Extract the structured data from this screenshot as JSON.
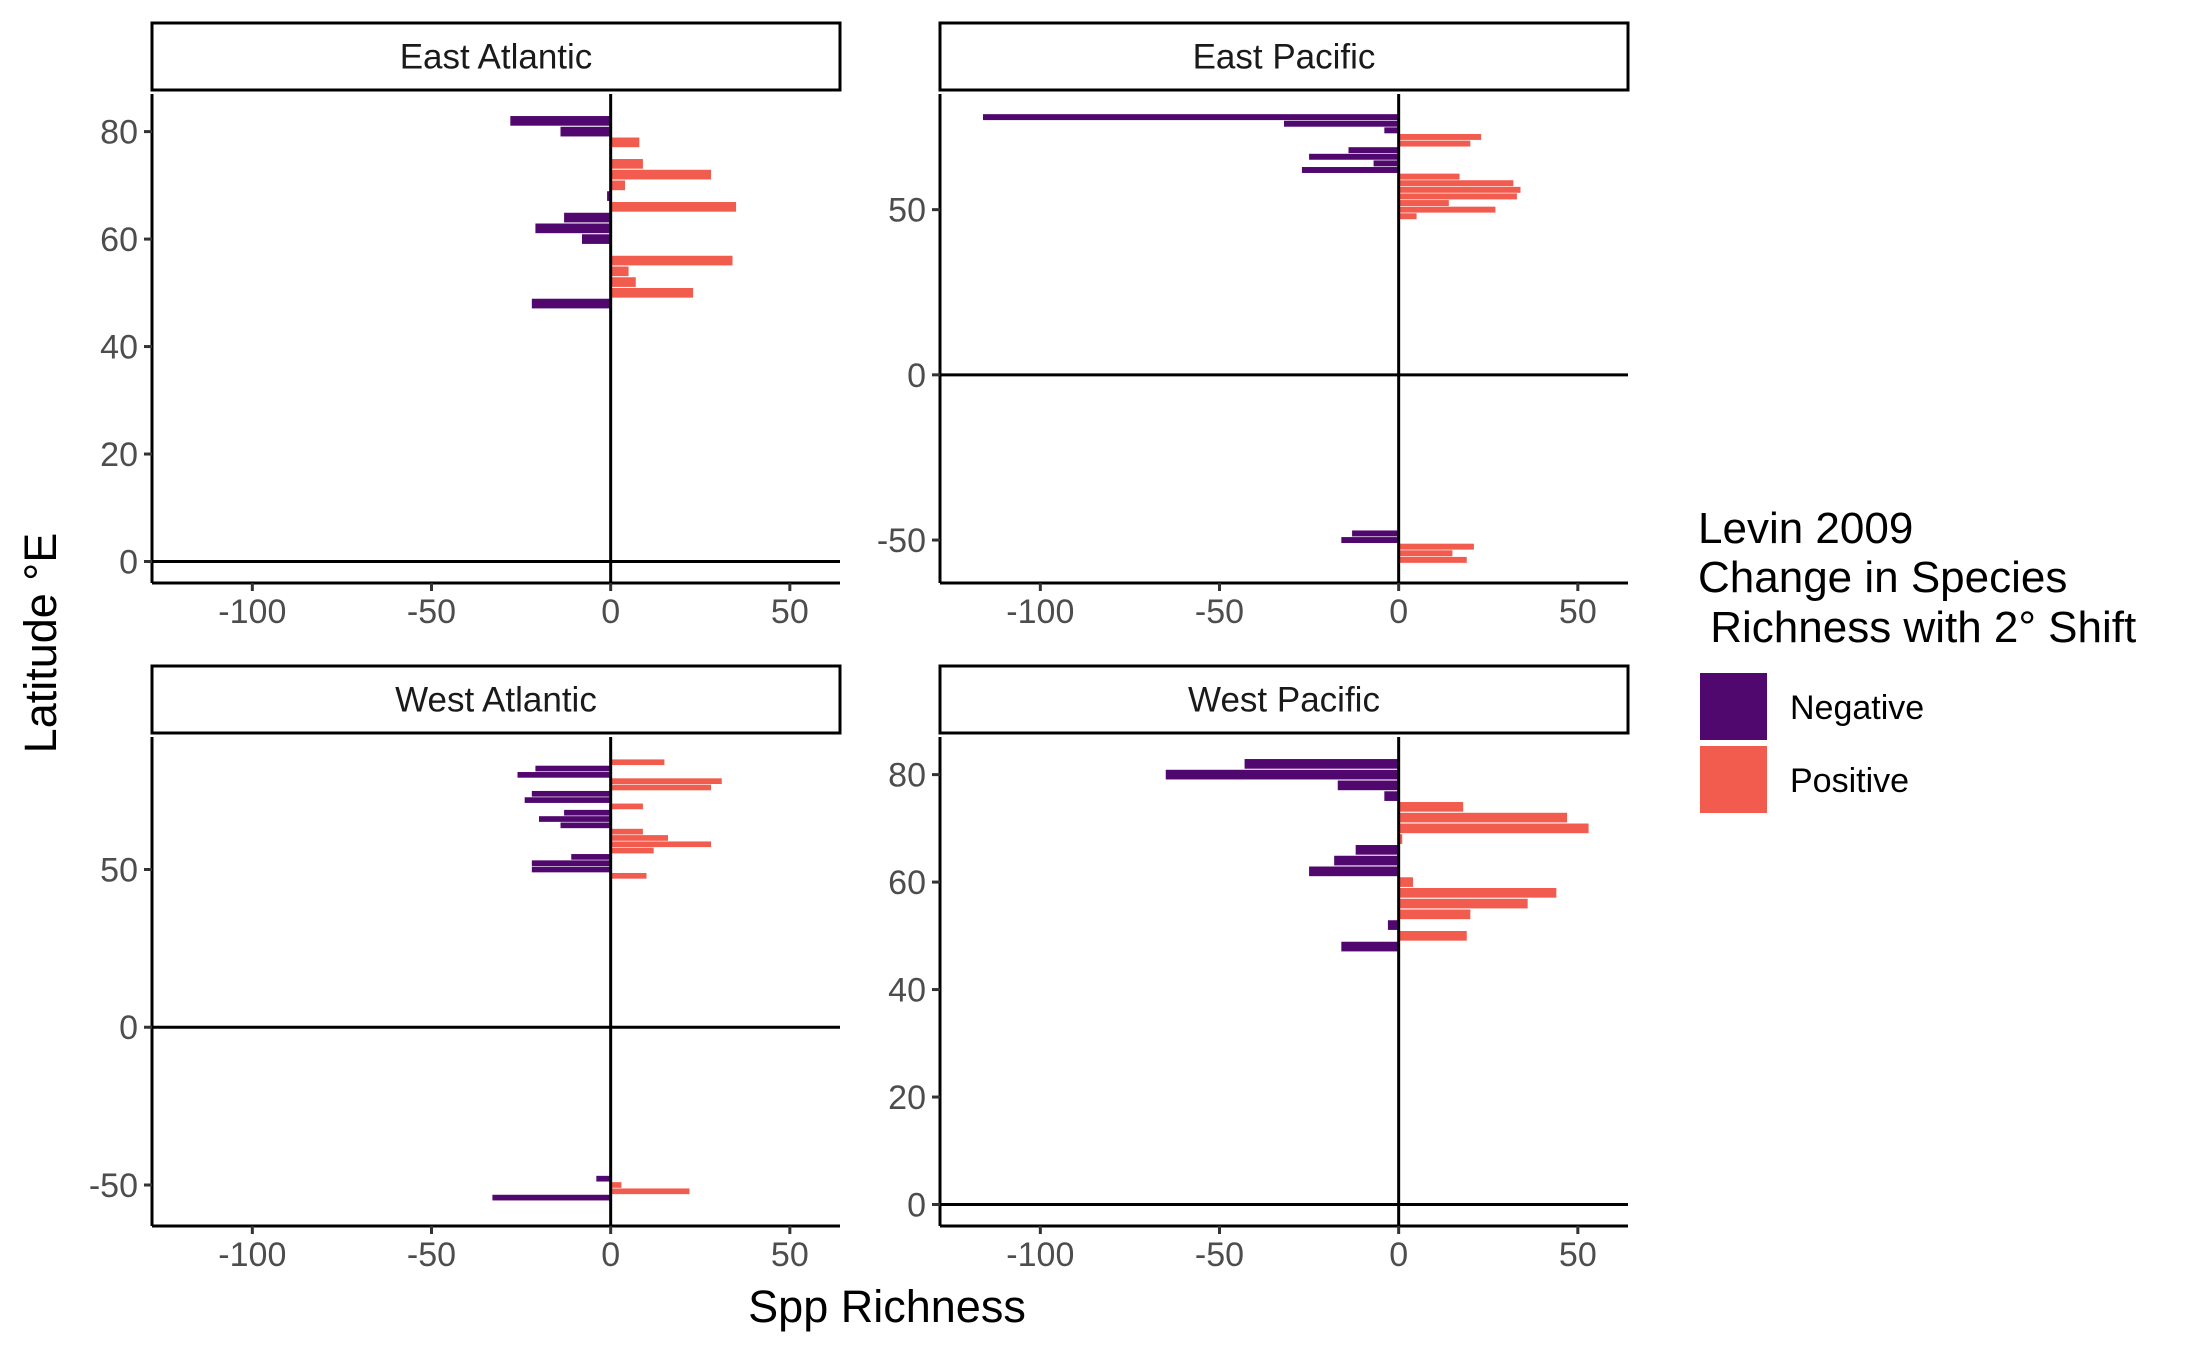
{
  "chart_data": {
    "type": "bar",
    "orientation": "horizontal",
    "facet_layout": "2x2",
    "xlabel": "Spp Richness",
    "ylabel": "Latitude °E",
    "xlim": [
      -128,
      64
    ],
    "xticks": [
      -100,
      -50,
      0,
      50
    ],
    "grid": false,
    "legend": {
      "title": [
        "Levin 2009",
        "Change in Species",
        " Richness with 2° Shift"
      ],
      "placement": "right",
      "entries": [
        {
          "label": "Negative",
          "color": "#51086e"
        },
        {
          "label": "Positive",
          "color": "#f25c4e"
        }
      ]
    },
    "colors": {
      "Negative": "#51086e",
      "Positive": "#f25c4e"
    },
    "panels": [
      {
        "name": "East Atlantic",
        "ylim": [
          -4,
          87
        ],
        "yticks": [
          0,
          20,
          40,
          60,
          80
        ],
        "bars": [
          {
            "lat": 82,
            "value": -28
          },
          {
            "lat": 80,
            "value": -14
          },
          {
            "lat": 78,
            "value": 8
          },
          {
            "lat": 74,
            "value": 9
          },
          {
            "lat": 72,
            "value": 28
          },
          {
            "lat": 70,
            "value": 4
          },
          {
            "lat": 68,
            "value": -1
          },
          {
            "lat": 66,
            "value": 35
          },
          {
            "lat": 64,
            "value": -13
          },
          {
            "lat": 62,
            "value": -21
          },
          {
            "lat": 60,
            "value": -8
          },
          {
            "lat": 56,
            "value": 34
          },
          {
            "lat": 54,
            "value": 5
          },
          {
            "lat": 52,
            "value": 7
          },
          {
            "lat": 50,
            "value": 23
          },
          {
            "lat": 48,
            "value": -22
          }
        ]
      },
      {
        "name": "East Pacific",
        "ylim": [
          -63,
          85
        ],
        "yticks": [
          -50,
          0,
          50
        ],
        "bars": [
          {
            "lat": 78,
            "value": -116
          },
          {
            "lat": 76,
            "value": -32
          },
          {
            "lat": 74,
            "value": -4
          },
          {
            "lat": 72,
            "value": 23
          },
          {
            "lat": 70,
            "value": 20
          },
          {
            "lat": 68,
            "value": -14
          },
          {
            "lat": 66,
            "value": -25
          },
          {
            "lat": 64,
            "value": -7
          },
          {
            "lat": 62,
            "value": -27
          },
          {
            "lat": 60,
            "value": 17
          },
          {
            "lat": 58,
            "value": 32
          },
          {
            "lat": 56,
            "value": 34
          },
          {
            "lat": 54,
            "value": 33
          },
          {
            "lat": 52,
            "value": 14
          },
          {
            "lat": 50,
            "value": 27
          },
          {
            "lat": 48,
            "value": 5
          },
          {
            "lat": -48,
            "value": -13
          },
          {
            "lat": -50,
            "value": -16
          },
          {
            "lat": -52,
            "value": 21
          },
          {
            "lat": -54,
            "value": 15
          },
          {
            "lat": -56,
            "value": 19
          }
        ]
      },
      {
        "name": "West Atlantic",
        "ylim": [
          -63,
          92
        ],
        "yticks": [
          -50,
          0,
          50
        ],
        "bars": [
          {
            "lat": 84,
            "value": 15
          },
          {
            "lat": 82,
            "value": -21
          },
          {
            "lat": 80,
            "value": -26
          },
          {
            "lat": 78,
            "value": 31
          },
          {
            "lat": 76,
            "value": 28
          },
          {
            "lat": 74,
            "value": -22
          },
          {
            "lat": 72,
            "value": -24
          },
          {
            "lat": 70,
            "value": 9
          },
          {
            "lat": 68,
            "value": -13
          },
          {
            "lat": 66,
            "value": -20
          },
          {
            "lat": 64,
            "value": -14
          },
          {
            "lat": 62,
            "value": 9
          },
          {
            "lat": 60,
            "value": 16
          },
          {
            "lat": 58,
            "value": 28
          },
          {
            "lat": 56,
            "value": 12
          },
          {
            "lat": 54,
            "value": -11
          },
          {
            "lat": 52,
            "value": -22
          },
          {
            "lat": 50,
            "value": -22
          },
          {
            "lat": 48,
            "value": 10
          },
          {
            "lat": -48,
            "value": -4
          },
          {
            "lat": -50,
            "value": 3
          },
          {
            "lat": -52,
            "value": 22
          },
          {
            "lat": -54,
            "value": -33
          }
        ]
      },
      {
        "name": "West Pacific",
        "ylim": [
          -4,
          87
        ],
        "yticks": [
          0,
          20,
          40,
          60,
          80
        ],
        "bars": [
          {
            "lat": 82,
            "value": -43
          },
          {
            "lat": 80,
            "value": -65
          },
          {
            "lat": 78,
            "value": -17
          },
          {
            "lat": 76,
            "value": -4
          },
          {
            "lat": 74,
            "value": 18
          },
          {
            "lat": 72,
            "value": 47
          },
          {
            "lat": 70,
            "value": 53
          },
          {
            "lat": 68,
            "value": 1
          },
          {
            "lat": 66,
            "value": -12
          },
          {
            "lat": 64,
            "value": -18
          },
          {
            "lat": 62,
            "value": -25
          },
          {
            "lat": 60,
            "value": 4
          },
          {
            "lat": 58,
            "value": 44
          },
          {
            "lat": 56,
            "value": 36
          },
          {
            "lat": 54,
            "value": 20
          },
          {
            "lat": 52,
            "value": -3
          },
          {
            "lat": 50,
            "value": 19
          },
          {
            "lat": 48,
            "value": -16
          }
        ]
      }
    ]
  }
}
